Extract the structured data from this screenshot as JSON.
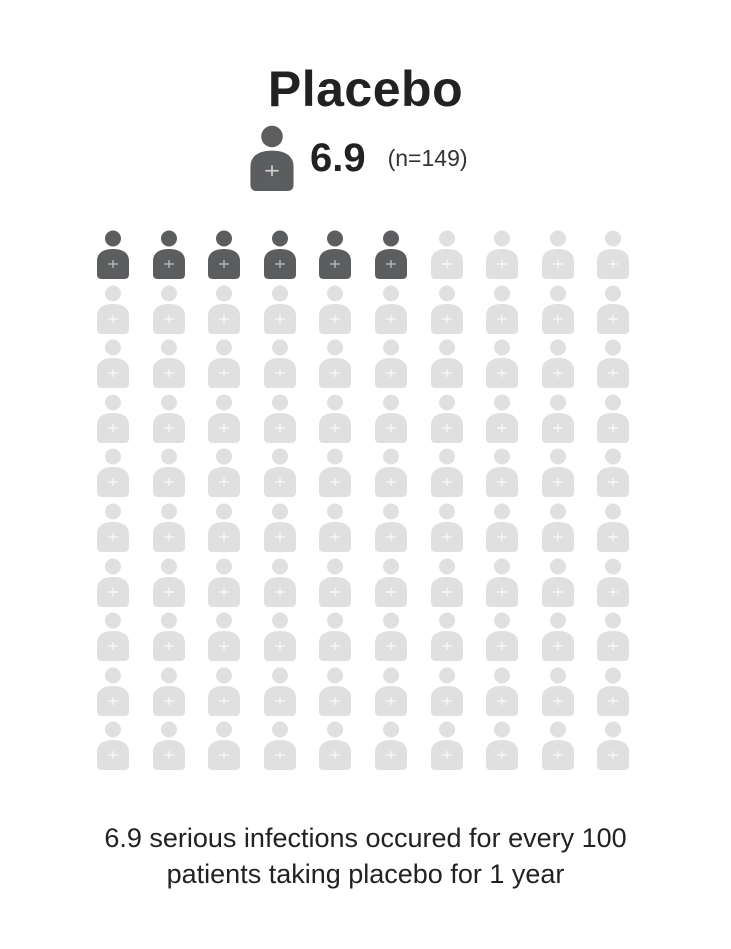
{
  "title": "Placebo",
  "summary": {
    "value": "6.9",
    "n_label": "(n=149)",
    "icon": "person-icon"
  },
  "chart_data": {
    "type": "pictograph",
    "title": "Placebo",
    "value": 6.9,
    "total": 100,
    "columns": 10,
    "rows": 10,
    "filled_color": "#5b5d5f",
    "empty_color": "#e0e0e0",
    "icon": "person-icon"
  },
  "caption": {
    "line1": "6.9 serious infections occured for every 100",
    "line2": "patients taking placebo for 1 year"
  }
}
